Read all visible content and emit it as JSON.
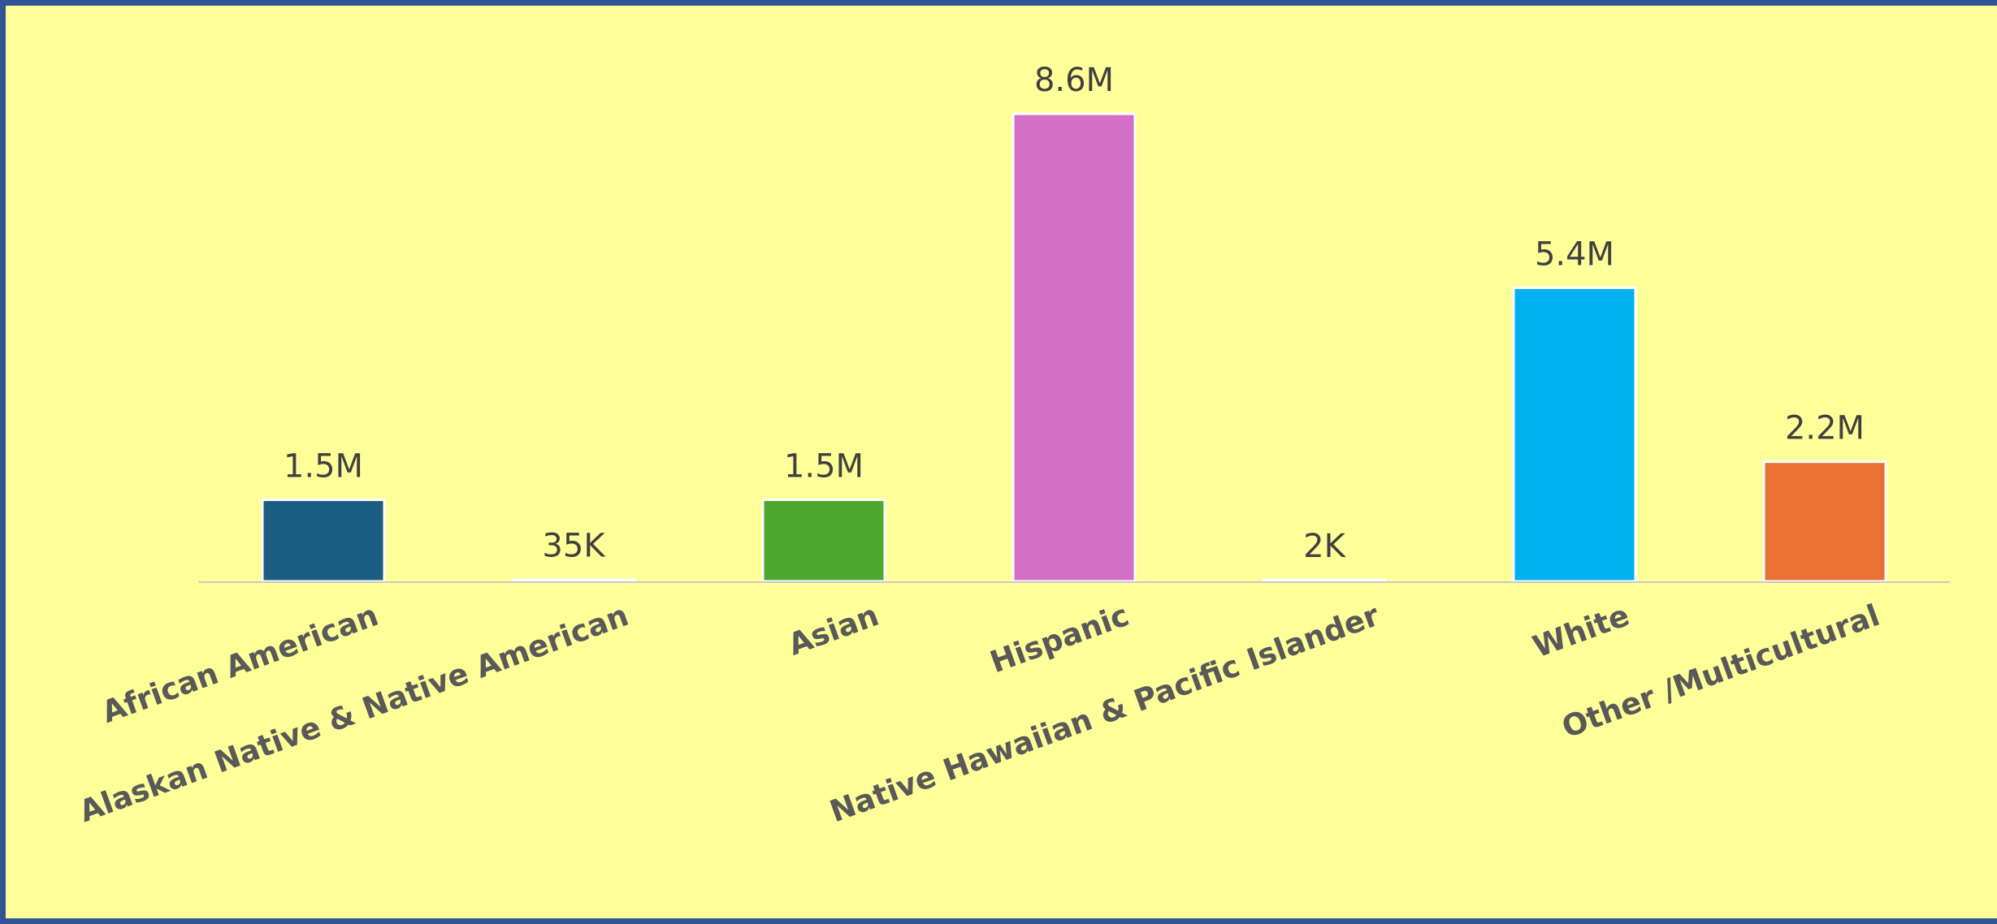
{
  "chart_data": {
    "type": "bar",
    "title": "",
    "xlabel": "",
    "ylabel": "",
    "ylim": [
      0,
      9.2
    ],
    "grid": false,
    "legend": "none",
    "categories": [
      "African American",
      "Alaskan Native & Native American",
      "Asian",
      "Hispanic",
      "Native Hawaiian & Pacific Islander",
      "White",
      "Other /Multicultural"
    ],
    "values": [
      1.5,
      0.035,
      1.5,
      8.6,
      0.002,
      5.4,
      2.2
    ],
    "value_unit": "millions",
    "data_labels": [
      "1.5M",
      "35K",
      "1.5M",
      "8.6M",
      "2K",
      "5.4M",
      "2.2M"
    ],
    "colors": [
      "#1b5e82",
      "#ffffff",
      "#4ea72e",
      "#d46fc8",
      "#ffffff",
      "#00b0f0",
      "#e97132"
    ]
  },
  "style": {
    "background": "#ffff99",
    "border": "#2f5597",
    "axis_color": "#c9c9c9"
  }
}
